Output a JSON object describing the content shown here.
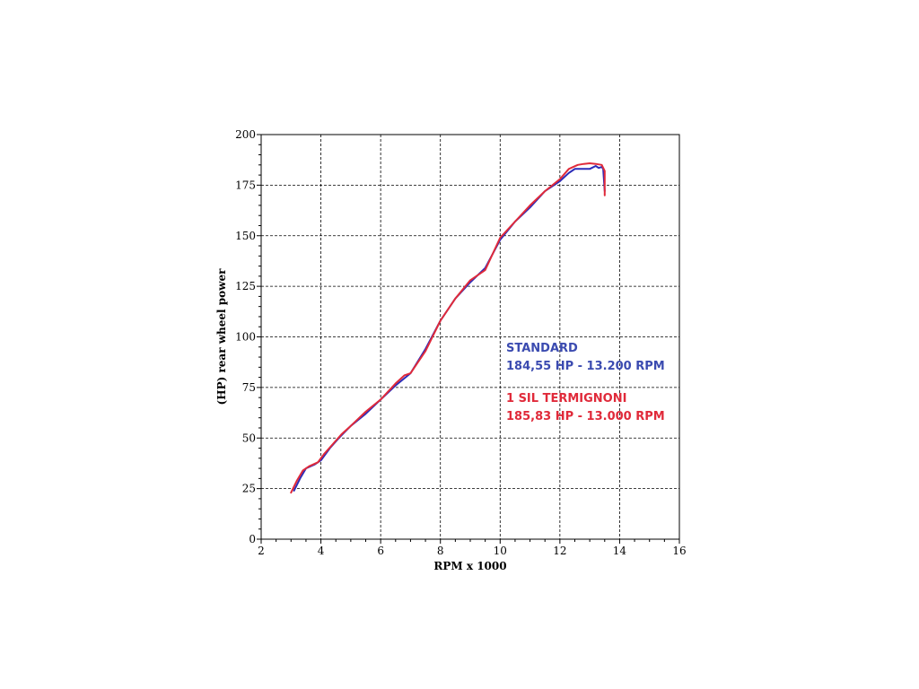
{
  "chart_data": {
    "type": "line",
    "title": "",
    "xlabel": "RPM x 1000",
    "ylabel": "(HP) rear wheel power",
    "xlim": [
      2,
      16
    ],
    "ylim": [
      0,
      200
    ],
    "xticks": [
      2,
      4,
      6,
      8,
      10,
      12,
      14,
      16
    ],
    "yticks": [
      0,
      25,
      50,
      75,
      100,
      125,
      150,
      175,
      200
    ],
    "grid": true,
    "legend": "none",
    "series": [
      {
        "name": "STANDARD",
        "color": "#2b2bb8",
        "x": [
          3.1,
          3.3,
          3.5,
          3.8,
          4.0,
          4.3,
          4.6,
          5.0,
          5.5,
          6.0,
          6.5,
          7.0,
          7.5,
          8.0,
          8.5,
          9.0,
          9.5,
          10.0,
          10.5,
          11.0,
          11.5,
          12.0,
          12.3,
          12.5,
          12.8,
          13.0,
          13.2,
          13.3,
          13.4,
          13.45,
          13.5
        ],
        "y": [
          24,
          30,
          35,
          37,
          39,
          45,
          50,
          56,
          62,
          69,
          76,
          82,
          94,
          108,
          119,
          127,
          134,
          148,
          157,
          164,
          172,
          177,
          181,
          183,
          183,
          183,
          184.5,
          183.5,
          184,
          183,
          172
        ]
      },
      {
        "name": "1 SIL TERMIGNONI",
        "color": "#e02a3a",
        "x": [
          3.0,
          3.2,
          3.4,
          3.6,
          3.9,
          4.1,
          4.4,
          4.7,
          5.0,
          5.5,
          6.0,
          6.5,
          6.8,
          7.0,
          7.5,
          8.0,
          8.5,
          9.0,
          9.5,
          10.0,
          10.5,
          11.0,
          11.5,
          12.0,
          12.3,
          12.6,
          12.8,
          13.0,
          13.2,
          13.4,
          13.5,
          13.5
        ],
        "y": [
          23,
          29,
          34,
          36,
          38,
          42,
          47,
          52,
          56,
          63,
          69,
          77,
          81,
          82,
          93,
          108,
          119,
          128,
          133,
          149,
          157,
          165,
          172,
          178,
          183,
          185,
          185.5,
          185.8,
          185.5,
          185,
          182,
          170
        ]
      }
    ],
    "annotations": [
      {
        "text": "STANDARD",
        "color": "#3b4bb0"
      },
      {
        "text": "184,55 HP - 13.200 RPM",
        "color": "#3b4bb0"
      },
      {
        "text": "1 SIL TERMIGNONI",
        "color": "#e02a3a"
      },
      {
        "text": "185,83 HP - 13.000 RPM",
        "color": "#e02a3a"
      }
    ]
  }
}
